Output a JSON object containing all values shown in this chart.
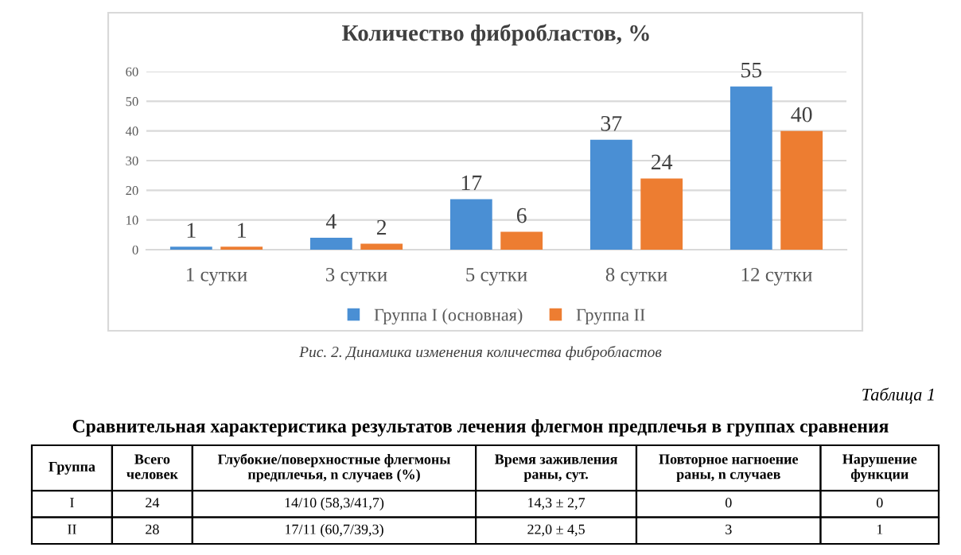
{
  "chart_data": [
    {
      "type": "bar",
      "title": "Количество фибробластов, %",
      "categories": [
        "1 сутки",
        "3 сутки",
        "5 сутки",
        "8 сутки",
        "12 сутки"
      ],
      "series": [
        {
          "name": "Группа I (основная)",
          "color": "#4a8fd4",
          "values": [
            1,
            4,
            17,
            37,
            55
          ]
        },
        {
          "name": "Группа II",
          "color": "#ed7d31",
          "values": [
            1,
            2,
            6,
            24,
            40
          ]
        }
      ],
      "ylim": [
        0,
        60
      ],
      "yticks": [
        0,
        10,
        20,
        30,
        40,
        50,
        60
      ],
      "grid": "y",
      "legend": "bottom",
      "data_labels": true,
      "annotations": [
        "Рис. 2. Динамика изменения количества фибробластов"
      ]
    },
    {
      "type": "other",
      "title": "Сравнительная характеристика результатов лечения флегмон предплечья в группах сравнения",
      "annotations": [
        "Таблица 1",
        "Группа",
        "Всего\nчеловек",
        "Глубокие/поверхностные флегмоны\nпредплечья, n случаев (%)",
        "Время заживления\nраны, сут.",
        "Повторное нагноение\nраны, n случаев",
        "Нарушение\nфункции",
        "I",
        "24",
        "14/10 (58,3/41,7)",
        "14,3 ± 2,7",
        "0",
        "0",
        "II",
        "28",
        "17/11 (60,7/39,3)",
        "22,0 ± 4,5",
        "3",
        "1"
      ]
    }
  ]
}
